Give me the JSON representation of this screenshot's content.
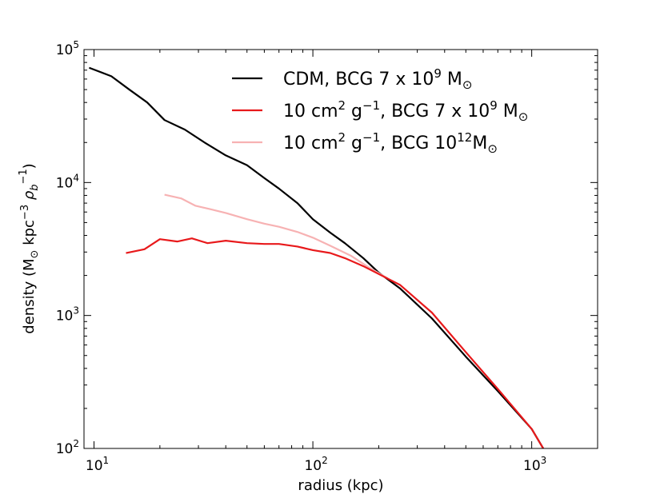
{
  "chart_data": {
    "type": "line",
    "xlabel": "radius (kpc)",
    "ylabel_parts": [
      "density (M",
      "⊙",
      " kpc",
      "−3",
      " ρ",
      "b",
      "−1",
      ")"
    ],
    "xscale": "log",
    "yscale": "log",
    "xlim": [
      9,
      2000
    ],
    "ylim": [
      100,
      100000
    ],
    "grid": false,
    "legend_position": "top-right",
    "x_ticks": [
      {
        "value": 10,
        "base": "10",
        "exp": "1"
      },
      {
        "value": 100,
        "base": "10",
        "exp": "2"
      },
      {
        "value": 1000,
        "base": "10",
        "exp": "3"
      }
    ],
    "y_ticks": [
      {
        "value": 100,
        "base": "10",
        "exp": "2"
      },
      {
        "value": 1000,
        "base": "10",
        "exp": "3"
      },
      {
        "value": 10000,
        "base": "10",
        "exp": "4"
      },
      {
        "value": 100000,
        "base": "10",
        "exp": "5"
      }
    ],
    "series": [
      {
        "name": "CDM, BCG 7 x 10⁹ M⊙",
        "legend_parts": [
          "CDM, BCG 7 x 10",
          "9",
          " M",
          "⊙"
        ],
        "color": "#000000",
        "x": [
          9.5,
          12,
          14.5,
          17.5,
          21,
          26,
          32,
          40,
          50,
          60,
          70,
          85,
          100,
          120,
          140,
          170,
          200,
          250,
          350,
          500,
          700,
          1000,
          1150
        ],
        "y": [
          73000,
          63000,
          50000,
          40000,
          29500,
          25000,
          20000,
          16000,
          13500,
          10800,
          9000,
          7000,
          5300,
          4200,
          3500,
          2700,
          2100,
          1600,
          950,
          490,
          270,
          140,
          95
        ]
      },
      {
        "name": "10 cm² g⁻¹, BCG 7 x 10⁹ M⊙",
        "legend_parts": [
          "10 cm",
          "2",
          " g",
          "−1",
          ", BCG 7 x 10",
          "9",
          " M",
          "⊙"
        ],
        "color": "#e8191b",
        "x": [
          14,
          17,
          20,
          24,
          28,
          33,
          40,
          50,
          60,
          70,
          85,
          100,
          120,
          140,
          170,
          200,
          250,
          350,
          500,
          700,
          1000,
          1150
        ],
        "y": [
          2950,
          3150,
          3750,
          3600,
          3800,
          3500,
          3650,
          3500,
          3450,
          3450,
          3300,
          3100,
          2950,
          2700,
          2350,
          2050,
          1700,
          1050,
          530,
          280,
          140,
          95
        ]
      },
      {
        "name": "10 cm² g⁻¹, BCG 10¹² M⊙",
        "legend_parts": [
          "10 cm",
          "2",
          " g",
          "−1",
          ", BCG 10",
          "12",
          "M",
          "⊙"
        ],
        "color": "#f7b2b3",
        "x": [
          21,
          25,
          29,
          34,
          40,
          50,
          60,
          70,
          85,
          100,
          120,
          150,
          180,
          220
        ],
        "y": [
          8100,
          7600,
          6700,
          6300,
          5900,
          5300,
          4900,
          4650,
          4250,
          3850,
          3350,
          2800,
          2300,
          1900
        ]
      }
    ]
  }
}
